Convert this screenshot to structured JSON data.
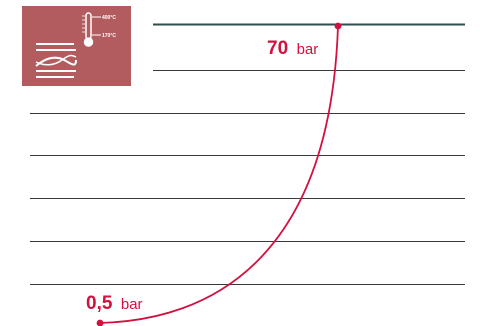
{
  "colors": {
    "accent": "#d2113f",
    "rule_dark": "#2f4f4f",
    "rule": "#3a3a3a",
    "icon_bg": "#b25c5f"
  },
  "icon": {
    "name": "pressure-temperature-icon",
    "temp_high": "400°C",
    "temp_low": "170°C"
  },
  "labels": {
    "high_value": "70",
    "high_unit": "bar",
    "low_value": "0,5",
    "low_unit": "bar"
  }
}
